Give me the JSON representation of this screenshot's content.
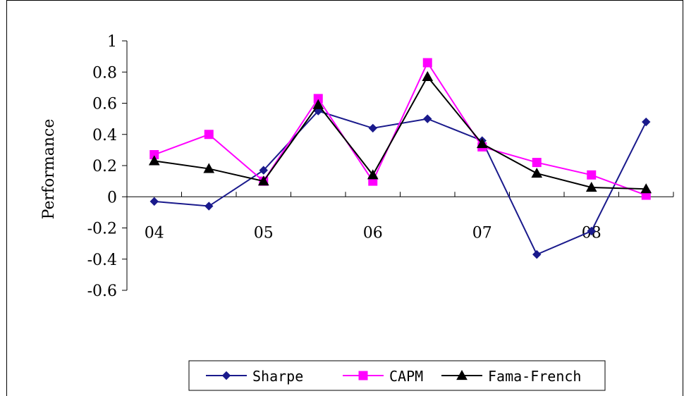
{
  "chart_data": {
    "type": "line",
    "title": "",
    "xlabel": "",
    "ylabel": "Performance",
    "ylim": [
      -0.6,
      1
    ],
    "yticks": [
      "1",
      "0.8",
      "0.6",
      "0.4",
      "0.2",
      "0",
      "-0.2",
      "-0.4",
      "-0.6"
    ],
    "ytick_values": [
      1,
      0.8,
      0.6,
      0.4,
      0.2,
      0,
      -0.2,
      -0.4,
      -0.6
    ],
    "xtick_labels": [
      "04",
      "05",
      "06",
      "07",
      "08"
    ],
    "grid": false,
    "legend_position": "bottom",
    "series": [
      {
        "name": "Sharpe",
        "color": "#1a1a8c",
        "marker": "diamond",
        "values": [
          -0.03,
          -0.06,
          0.17,
          0.55,
          0.44,
          0.5,
          0.36,
          -0.37,
          -0.22,
          0.48
        ]
      },
      {
        "name": "CAPM",
        "color": "#ff00ff",
        "marker": "square",
        "values": [
          0.27,
          0.4,
          0.1,
          0.63,
          0.1,
          0.86,
          0.32,
          0.22,
          0.14,
          0.01
        ]
      },
      {
        "name": "Fama-French",
        "color": "#000000",
        "marker": "triangle",
        "values": [
          0.23,
          0.18,
          0.1,
          0.59,
          0.14,
          0.77,
          0.34,
          0.15,
          0.06,
          0.05
        ]
      }
    ]
  }
}
